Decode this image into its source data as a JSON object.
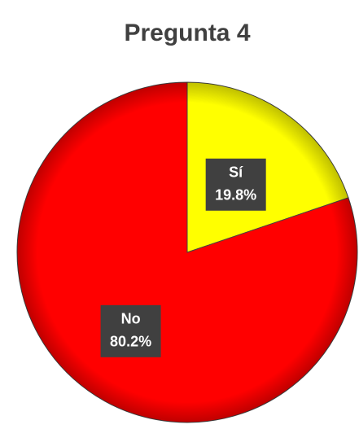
{
  "chart_data": {
    "type": "pie",
    "title": "Pregunta 4",
    "categories": [
      "Sí",
      "No"
    ],
    "values": [
      19.8,
      80.2
    ],
    "value_labels": [
      "19.8%",
      "80.2%"
    ],
    "colors": [
      "#ffff00",
      "#ff0000"
    ]
  }
}
